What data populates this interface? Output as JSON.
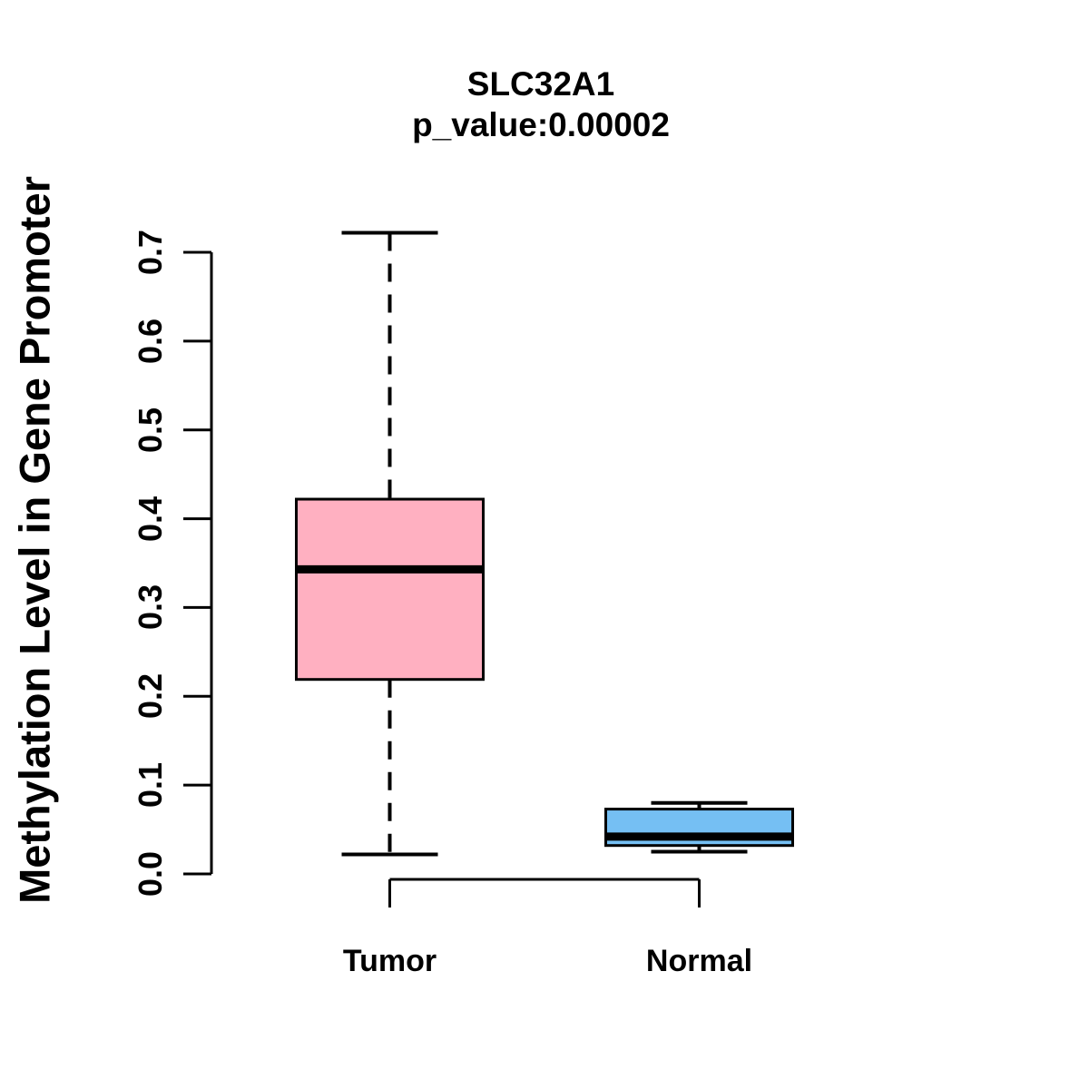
{
  "header": {
    "title": "SLC32A1",
    "subtitle": "p_value:0.00002"
  },
  "chart_data": {
    "type": "boxplot",
    "title": "SLC32A1",
    "subtitle": "p_value:0.00002",
    "ylabel": "Methylation Level in Gene Promoter",
    "xlabel": "",
    "ylim": [
      0.0,
      0.7
    ],
    "y_tick_labels": [
      "0.0",
      "0.1",
      "0.2",
      "0.3",
      "0.4",
      "0.5",
      "0.6",
      "0.7"
    ],
    "grid": false,
    "legend": "none",
    "categories": [
      "Tumor",
      "Normal"
    ],
    "series": [
      {
        "name": "Tumor",
        "box_color": "#ffb0c1",
        "whisker_low": 0.022,
        "q1": 0.219,
        "median": 0.343,
        "q3": 0.422,
        "whisker_high": 0.722
      },
      {
        "name": "Normal",
        "box_color": "#75bff3",
        "whisker_low": 0.025,
        "q1": 0.032,
        "median": 0.042,
        "q3": 0.073,
        "whisker_high": 0.08
      }
    ],
    "colors": {
      "stroke": "#000000",
      "text": "#000000",
      "background": "#ffffff"
    }
  }
}
